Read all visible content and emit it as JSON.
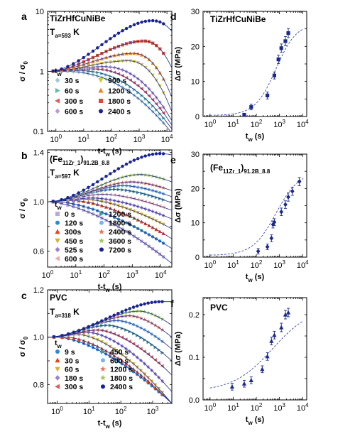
{
  "chart_data": [
    {
      "id": "a",
      "panel_label": "a",
      "type": "line",
      "xscale": "log",
      "yscale": "log",
      "xlim": [
        0.5,
        15000
      ],
      "ylim": [
        0.1,
        10
      ],
      "xticks": [
        1,
        10,
        100,
        1000,
        10000
      ],
      "xtick_labels": [
        "10^0",
        "10^1",
        "10^2",
        "10^3",
        "10^4"
      ],
      "yticks": [
        0.1,
        1,
        10
      ],
      "ytick_labels": [
        "0.1",
        "1",
        "10"
      ],
      "xlabel": "t-t_w (s)",
      "ylabel": "σ / σ_0",
      "title": "TiZrHfCuNiBe",
      "subtitle": "T_a=593 K",
      "legend_title": "t_w",
      "series": [
        {
          "name": "30 s",
          "color": "#9ac8dc",
          "marker": "diamond",
          "peak": 1.0,
          "tpk": 2,
          "decay_x": 3500
        },
        {
          "name": "60 s",
          "color": "#5fbfa8",
          "marker": "tri-right",
          "peak": 1.03,
          "tpk": 6,
          "decay_x": 5000
        },
        {
          "name": "300 s",
          "color": "#e05a5a",
          "marker": "tri-left",
          "peak": 1.1,
          "tpk": 20,
          "decay_x": 6500
        },
        {
          "name": "600 s",
          "color": "#b99ad8",
          "marker": "diamond",
          "peak": 1.2,
          "tpk": 50,
          "decay_x": 8000
        },
        {
          "name": "900 s",
          "color": "#d8c83a",
          "marker": "tri-down",
          "peak": 1.5,
          "tpk": 400,
          "decay_x": 11000
        },
        {
          "name": "1200 s",
          "color": "#f0801e",
          "marker": "tri-up",
          "peak": 2.0,
          "tpk": 600,
          "decay_x": 14000
        },
        {
          "name": "1800 s",
          "color": "#d94d36",
          "marker": "square",
          "peak": 3.2,
          "tpk": 1500,
          "decay_x": 25000
        },
        {
          "name": "2400 s",
          "color": "#17209a",
          "marker": "circle",
          "peak": 7.0,
          "tpk": 3000,
          "decay_x": 60000
        }
      ]
    },
    {
      "id": "b",
      "panel_label": "b",
      "type": "line",
      "xscale": "log",
      "yscale": "linear",
      "xlim": [
        1,
        25000
      ],
      "ylim": [
        0.47,
        1.42
      ],
      "xticks": [
        1,
        10,
        100,
        1000,
        10000
      ],
      "xtick_labels": [
        "10^0",
        "10^1",
        "10^2",
        "10^3",
        "10^4"
      ],
      "yticks": [
        0.6,
        1.0,
        1.4
      ],
      "ytick_labels": [
        "0.6",
        "1.0",
        "1.4"
      ],
      "xlabel": "t-t_w (s)",
      "ylabel": "σ / σ_0",
      "title": "(Fe11Zr1)91.2B8.8",
      "subtitle": "T_a=597 K",
      "legend_title": "t_w",
      "series": [
        {
          "name": "0 s",
          "color": "#b7a8dc",
          "marker": "square",
          "peak": 1.0,
          "tpk": 1,
          "end": 0.5
        },
        {
          "name": "120 s",
          "color": "#2a8ad8",
          "marker": "circle",
          "peak": 1.0,
          "tpk": 2,
          "end": 0.62
        },
        {
          "name": "300s",
          "color": "#e2481f",
          "marker": "tri-up",
          "peak": 1.01,
          "tpk": 8,
          "end": 0.7
        },
        {
          "name": "450 s",
          "color": "#d8b02a",
          "marker": "tri-down",
          "peak": 1.02,
          "tpk": 20,
          "end": 0.78
        },
        {
          "name": "525 s",
          "color": "#9b7ed6",
          "marker": "diamond",
          "peak": 1.03,
          "tpk": 40,
          "end": 0.86
        },
        {
          "name": "600 s",
          "color": "#f2a8a8",
          "marker": "tri-left",
          "peak": 1.06,
          "tpk": 100,
          "end": 0.93
        },
        {
          "name": "1200 s",
          "color": "#4a9a9a",
          "marker": "tri-right",
          "peak": 1.1,
          "tpk": 250,
          "end": 0.99
        },
        {
          "name": "1800 s",
          "color": "#7ab4e8",
          "marker": "circle",
          "peak": 1.13,
          "tpk": 500,
          "end": 1.04
        },
        {
          "name": "2400 s",
          "color": "#e87560",
          "marker": "star",
          "peak": 1.16,
          "tpk": 1000,
          "end": 1.09
        },
        {
          "name": "3600 s",
          "color": "#9ec860",
          "marker": "star",
          "peak": 1.22,
          "tpk": 2000,
          "end": 1.16
        },
        {
          "name": "7200 s",
          "color": "#17209a",
          "marker": "circle",
          "peak": 1.39,
          "tpk": 10000,
          "end": 1.38
        }
      ]
    },
    {
      "id": "c",
      "panel_label": "c",
      "type": "line",
      "xscale": "log",
      "yscale": "linear",
      "xlim": [
        0.5,
        4000
      ],
      "ylim": [
        0.72,
        1.2
      ],
      "xticks": [
        1,
        10,
        100,
        1000
      ],
      "xtick_labels": [
        "10^0",
        "10^1",
        "10^2",
        "10^3"
      ],
      "yticks": [
        0.8,
        1.0,
        1.2
      ],
      "ytick_labels": [
        "0.8",
        "1.0",
        "1.2"
      ],
      "xlabel": "t-t_w (s)",
      "ylabel": "σ / σ_0",
      "title": "PVC",
      "subtitle": "T_a=318 K",
      "legend_title": "t_w",
      "series": [
        {
          "name": "9 s",
          "color": "#2a8ad8",
          "marker": "circle",
          "peak": 1.0,
          "tpk": 1,
          "end": 0.72
        },
        {
          "name": "30 s",
          "color": "#e2481f",
          "marker": "tri-up",
          "peak": 1.0,
          "tpk": 2,
          "end": 0.72
        },
        {
          "name": "60 s",
          "color": "#d8b02a",
          "marker": "tri-down",
          "peak": 1.01,
          "tpk": 5,
          "end": 0.72
        },
        {
          "name": "180 s",
          "color": "#9b7ed6",
          "marker": "diamond",
          "peak": 1.02,
          "tpk": 10,
          "end": 0.77
        },
        {
          "name": "300 s",
          "color": "#e05a5a",
          "marker": "tri-left",
          "peak": 1.03,
          "tpk": 20,
          "end": 0.84
        },
        {
          "name": "450 s",
          "color": "#4a9a9a",
          "marker": "tri-right",
          "peak": 1.05,
          "tpk": 40,
          "end": 0.9
        },
        {
          "name": "600 s",
          "color": "#7ab4e8",
          "marker": "circle",
          "peak": 1.07,
          "tpk": 80,
          "end": 0.95
        },
        {
          "name": "1200 s",
          "color": "#e87560",
          "marker": "star",
          "peak": 1.09,
          "tpk": 200,
          "end": 1.0
        },
        {
          "name": "1800 s",
          "color": "#9ec860",
          "marker": "star",
          "peak": 1.11,
          "tpk": 400,
          "end": 1.05
        },
        {
          "name": "2400 s",
          "color": "#17209a",
          "marker": "circle",
          "peak": 1.15,
          "tpk": 2000,
          "end": 1.15
        }
      ]
    },
    {
      "id": "d",
      "panel_label": "d",
      "type": "scatter",
      "xscale": "log",
      "yscale": "linear",
      "xlim": [
        0.5,
        15000
      ],
      "ylim": [
        0,
        30
      ],
      "xticks": [
        1,
        10,
        100,
        1000,
        10000
      ],
      "xtick_labels": [
        "10^0",
        "10^1",
        "10^2",
        "10^3",
        "10^4"
      ],
      "yticks": [
        0,
        10,
        20,
        30
      ],
      "ytick_labels": [
        "0",
        "10",
        "20",
        "30"
      ],
      "xlabel": "t_w (s)",
      "ylabel": "Δσ (MPa)",
      "title": "TiZrHfCuNiBe",
      "marker": "square",
      "color": "#1a2a8c",
      "points": [
        {
          "x": 30,
          "y": 0.5,
          "err": 0.4
        },
        {
          "x": 60,
          "y": 2.7,
          "err": 0.8
        },
        {
          "x": 300,
          "y": 6.0,
          "err": 1.0
        },
        {
          "x": 600,
          "y": 11.7,
          "err": 1.0
        },
        {
          "x": 900,
          "y": 16.3,
          "err": 1.2
        },
        {
          "x": 1200,
          "y": 19.5,
          "err": 1.2
        },
        {
          "x": 1800,
          "y": 21.5,
          "err": 1.3
        },
        {
          "x": 2400,
          "y": 23.8,
          "err": 1.3
        }
      ],
      "fit": {
        "a": 0.3,
        "b": 26.5,
        "x0": 700,
        "w": 0.45
      }
    },
    {
      "id": "e",
      "panel_label": "e",
      "type": "scatter",
      "xscale": "log",
      "yscale": "linear",
      "xlim": [
        0.5,
        15000
      ],
      "ylim": [
        0,
        30
      ],
      "xticks": [
        1,
        10,
        100,
        1000,
        10000
      ],
      "xtick_labels": [
        "10^0",
        "10^1",
        "10^2",
        "10^3",
        "10^4"
      ],
      "yticks": [
        0,
        10,
        20,
        30
      ],
      "ytick_labels": [
        "0",
        "10",
        "20",
        "30"
      ],
      "xlabel": "t_w (s)",
      "ylabel": "Δσ (MPa)",
      "title": "(Fe11Zr1)91.2B8.8",
      "marker": "diamond",
      "color": "#1a2a8c",
      "points": [
        {
          "x": 120,
          "y": 1.7,
          "err": 0.8
        },
        {
          "x": 300,
          "y": 3.0,
          "err": 0.8
        },
        {
          "x": 450,
          "y": 5.5,
          "err": 1.0
        },
        {
          "x": 525,
          "y": 9.5,
          "err": 1.0
        },
        {
          "x": 600,
          "y": 10.2,
          "err": 1.0
        },
        {
          "x": 1200,
          "y": 13.2,
          "err": 1.1
        },
        {
          "x": 1800,
          "y": 15.3,
          "err": 1.1
        },
        {
          "x": 2400,
          "y": 17.5,
          "err": 1.2
        },
        {
          "x": 3600,
          "y": 19.2,
          "err": 1.2
        },
        {
          "x": 7200,
          "y": 22.0,
          "err": 1.2
        }
      ],
      "fit": {
        "a": 0.5,
        "b": 24.5,
        "x0": 700,
        "w": 0.5
      }
    },
    {
      "id": "f",
      "panel_label": "f",
      "type": "scatter",
      "xscale": "log",
      "yscale": "linear",
      "xlim": [
        0.5,
        15000
      ],
      "ylim": [
        0,
        0.24
      ],
      "xticks": [
        1,
        10,
        100,
        1000,
        10000
      ],
      "xtick_labels": [
        "10^0",
        "10^1",
        "10^2",
        "10^3",
        "10^4"
      ],
      "yticks": [
        0,
        0.1,
        0.2
      ],
      "ytick_labels": [
        "0.0",
        "0.1",
        "0.2"
      ],
      "xlabel": "t_w (s)",
      "ylabel": "Δσ (MPa)",
      "title": "PVC",
      "marker": "tri-up",
      "color": "#1a2a8c",
      "points": [
        {
          "x": 9,
          "y": 0.031,
          "err": 0.008
        },
        {
          "x": 30,
          "y": 0.038,
          "err": 0.008
        },
        {
          "x": 60,
          "y": 0.046,
          "err": 0.008
        },
        {
          "x": 180,
          "y": 0.072,
          "err": 0.008
        },
        {
          "x": 300,
          "y": 0.102,
          "err": 0.009
        },
        {
          "x": 450,
          "y": 0.138,
          "err": 0.009
        },
        {
          "x": 600,
          "y": 0.152,
          "err": 0.009
        },
        {
          "x": 1200,
          "y": 0.17,
          "err": 0.01
        },
        {
          "x": 1800,
          "y": 0.2,
          "err": 0.01
        },
        {
          "x": 2400,
          "y": 0.205,
          "err": 0.01
        }
      ],
      "fit": {
        "a": 0.02,
        "b": 0.2,
        "x0": 500,
        "w": 0.85
      }
    }
  ]
}
